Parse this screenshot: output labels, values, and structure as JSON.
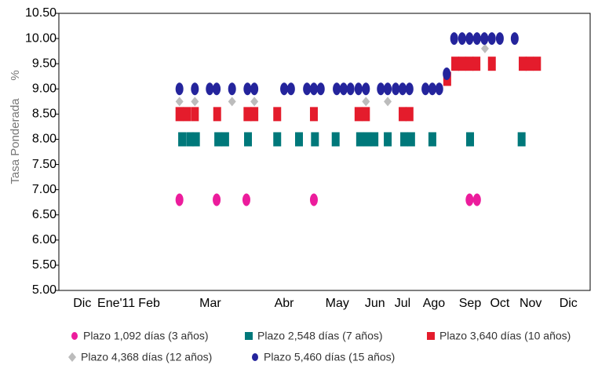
{
  "chart_data": {
    "type": "scatter",
    "ylabel": "Tasa Ponderada",
    "ylabel_unit": "%",
    "xlim": [
      0,
      100
    ],
    "xticks": [
      {
        "value": 4.4,
        "label": "Dic"
      },
      {
        "value": 10.8,
        "label": "Ene'11"
      },
      {
        "value": 17,
        "label": "Feb"
      },
      {
        "value": 28.5,
        "label": "Mar"
      },
      {
        "value": 42.4,
        "label": "Abr"
      },
      {
        "value": 52.4,
        "label": "May"
      },
      {
        "value": 59.5,
        "label": "Jun"
      },
      {
        "value": 64.7,
        "label": "Jul"
      },
      {
        "value": 70.6,
        "label": "Ago"
      },
      {
        "value": 77.4,
        "label": "Sep"
      },
      {
        "value": 83,
        "label": "Oct"
      },
      {
        "value": 88.8,
        "label": "Nov"
      },
      {
        "value": 95.9,
        "label": "Dic"
      }
    ],
    "ylim": [
      5,
      10.5
    ],
    "yticks": [
      {
        "value": 5,
        "label": "5.00"
      },
      {
        "value": 5.5,
        "label": "5.50"
      },
      {
        "value": 6,
        "label": "6.00"
      },
      {
        "value": 6.5,
        "label": "6.50"
      },
      {
        "value": 7,
        "label": "7.00"
      },
      {
        "value": 7.5,
        "label": "7.50"
      },
      {
        "value": 8,
        "label": "8.00"
      },
      {
        "value": 8.5,
        "label": "8.50"
      },
      {
        "value": 9,
        "label": "9.00"
      },
      {
        "value": 9.5,
        "label": "9.50"
      },
      {
        "value": 10,
        "label": "10.00"
      },
      {
        "value": 10.5,
        "label": "10.50"
      }
    ],
    "series": [
      {
        "name": "Plazo 1,092 días (3 años)",
        "color": "#ec1c9c",
        "marker": "circle",
        "x": [
          22.7,
          29.7,
          35.3,
          48.0,
          77.3,
          78.7
        ],
        "values": [
          6.8,
          6.8,
          6.8,
          6.8,
          6.8,
          6.8
        ]
      },
      {
        "name": "Plazo 2,548 días (7 años)",
        "color": "#00787a",
        "marker": "square",
        "x": [
          23.2,
          24.7,
          25.8,
          30.0,
          31.3,
          35.6,
          41.1,
          45.2,
          48.2,
          52.1,
          56.7,
          58.1,
          59.4,
          61.9,
          65.0,
          66.3,
          70.3,
          77.4,
          87.1
        ],
        "values": [
          8,
          8,
          8,
          8,
          8,
          8,
          8,
          8,
          8,
          8,
          8,
          8,
          8,
          8,
          8,
          8,
          8,
          8,
          8
        ]
      },
      {
        "name": "Plazo 3,640 días (10 años)",
        "color": "#e41c2c",
        "marker": "square",
        "x": [
          22.7,
          24.1,
          25.6,
          29.8,
          35.5,
          36.8,
          41.1,
          48.0,
          56.4,
          57.8,
          64.7,
          66.0,
          73.1,
          74.6,
          75.9,
          77.3,
          78.6,
          81.5,
          87.3,
          88.6,
          90.0
        ],
        "values": [
          8.5,
          8.5,
          8.5,
          8.5,
          8.5,
          8.5,
          8.5,
          8.5,
          8.5,
          8.5,
          8.5,
          8.5,
          9.2,
          9.5,
          9.5,
          9.5,
          9.5,
          9.5,
          9.5,
          9.5,
          9.5
        ]
      },
      {
        "name": "Plazo 4,368 días (12 años)",
        "color": "#bcbcbc",
        "marker": "diamond",
        "x": [
          22.7,
          25.6,
          32.6,
          36.8,
          57.8,
          61.9,
          80.2
        ],
        "values": [
          8.75,
          8.75,
          8.75,
          8.75,
          8.75,
          8.75,
          9.8
        ]
      },
      {
        "name": "Plazo 5,460 días (15 años)",
        "color": "#24249c",
        "marker": "circle",
        "x": [
          22.7,
          25.6,
          28.4,
          29.7,
          32.6,
          35.5,
          36.8,
          42.4,
          43.7,
          46.7,
          48.0,
          49.3,
          52.3,
          53.6,
          54.9,
          56.4,
          57.8,
          60.6,
          61.9,
          63.4,
          64.7,
          66.0,
          69.0,
          70.3,
          71.6,
          73.0,
          74.4,
          75.9,
          77.3,
          78.7,
          80.1,
          81.5,
          83.0,
          85.8
        ],
        "values": [
          9,
          9,
          9,
          9,
          9,
          9,
          9,
          9,
          9,
          9,
          9,
          9,
          9,
          9,
          9,
          9,
          9,
          9,
          9,
          9,
          9,
          9,
          9,
          9,
          9,
          9.3,
          10,
          10,
          10,
          10,
          10,
          10,
          10,
          10
        ]
      }
    ]
  }
}
